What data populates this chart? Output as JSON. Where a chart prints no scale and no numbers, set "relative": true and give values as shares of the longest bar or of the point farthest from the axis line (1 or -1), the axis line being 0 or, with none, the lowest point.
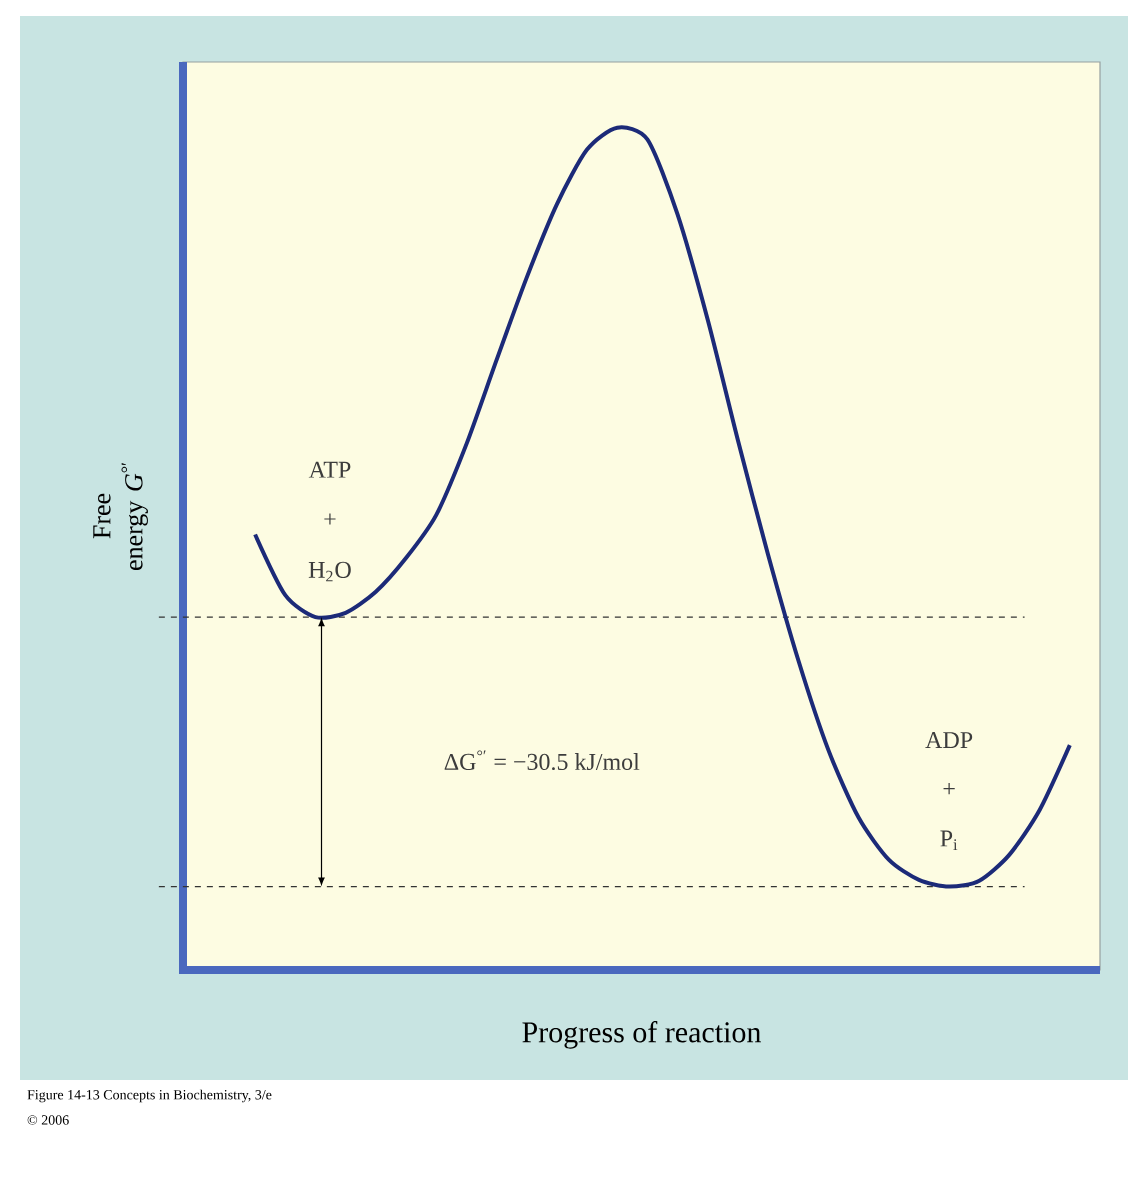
{
  "chart_data": {
    "type": "line",
    "relative": true,
    "color": "#1c2a78",
    "xlabel": "Progress of reaction",
    "ylabel": "Free energy *G*$^{°′}$",
    "categories": [
      null,
      null,
      null,
      null,
      null,
      null,
      null,
      null,
      null,
      null,
      null,
      null,
      null,
      null,
      null,
      null,
      null,
      null,
      null,
      null,
      null,
      null,
      null,
      null,
      null,
      null,
      null,
      null
    ],
    "values": [
      0.517,
      0.445,
      0.419,
      0.424,
      0.449,
      0.489,
      0.54,
      0.624,
      0.724,
      0.822,
      0.909,
      0.974,
      1,
      0.986,
      0.897,
      0.772,
      0.629,
      0.493,
      0.368,
      0.261,
      0.181,
      0.131,
      0.107,
      0.099,
      0.106,
      0.137,
      0.19,
      0.267
    ],
    "ref_lines": [
      {
        "axis": "y",
        "value": 0.419,
        "line_style": "dashed",
        "color": "#333333"
      },
      {
        "axis": "y",
        "value": 0.099,
        "line_style": "dashed",
        "color": "#333333"
      }
    ],
    "annotations": [
      "ATP",
      "+",
      "H$_{2}$O",
      "ADP",
      "+",
      "P$_{i}$",
      "ΔG$^{°′}$ = −30.5 kJ/mol",
      "Figure 14-13 Concepts in Biochemistry, 3/e",
      "© 2006"
    ]
  }
}
